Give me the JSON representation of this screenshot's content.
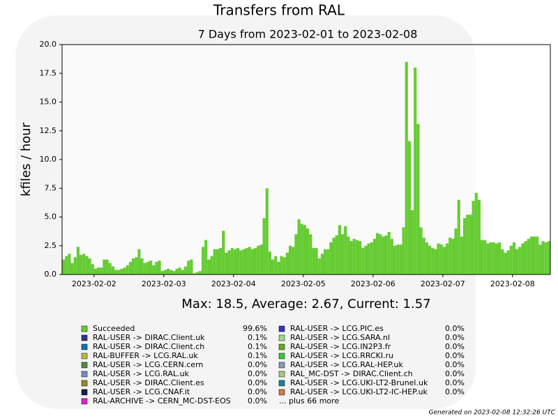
{
  "chart_data": {
    "type": "bar",
    "title": "Transfers from RAL",
    "subtitle": "7 Days from 2023-02-01 to 2023-02-08",
    "y_label": "kfiles / hour",
    "summary": "Max: 18.5, Average: 2.67, Current: 1.57",
    "footer": "Generated on 2023-02-08 12:32:26 UTC",
    "xlim": [
      0,
      168
    ],
    "xticks": [
      {
        "value": 11,
        "label": "2023-02-02"
      },
      {
        "value": 35,
        "label": "2023-02-03"
      },
      {
        "value": 59,
        "label": "2023-02-04"
      },
      {
        "value": 83,
        "label": "2023-02-05"
      },
      {
        "value": 107,
        "label": "2023-02-06"
      },
      {
        "value": 131,
        "label": "2023-02-07"
      },
      {
        "value": 155,
        "label": "2023-02-08"
      }
    ],
    "ylim": [
      0,
      20
    ],
    "yticks": [
      {
        "value": 0,
        "label": "0.0"
      },
      2.5,
      {
        "value": 5,
        "label": "5.0"
      },
      7.5,
      {
        "value": 10,
        "label": "10.0"
      },
      12.5,
      {
        "value": 15,
        "label": "15.0"
      },
      17.5,
      {
        "value": 20,
        "label": "20.0"
      }
    ],
    "series": [
      {
        "name": "Succeeded",
        "color": "#66cc33",
        "values": [
          1.3,
          1.6,
          1.8,
          1.0,
          1.5,
          2.4,
          1.7,
          1.8,
          1.6,
          1.4,
          0.9,
          0.5,
          0.6,
          0.6,
          1.3,
          1.3,
          1.0,
          0.7,
          0.4,
          0.4,
          0.5,
          0.6,
          0.8,
          1.1,
          1.4,
          1.5,
          2.2,
          1.4,
          1.0,
          1.1,
          1.2,
          0.8,
          1.1,
          1.2,
          0.3,
          0.4,
          0.5,
          0.4,
          0.3,
          0.5,
          0.6,
          0.4,
          0.7,
          1.2,
          1.3,
          0.1,
          0.2,
          0.3,
          2.4,
          3.0,
          1.3,
          1.6,
          2.2,
          2.2,
          2.3,
          3.8,
          1.9,
          2.1,
          2.3,
          2.2,
          2.3,
          2.1,
          2.2,
          2.3,
          2.4,
          2.2,
          2.3,
          2.5,
          2.6,
          4.9,
          7.5,
          2.0,
          1.3,
          1.6,
          1.1,
          1.6,
          1.5,
          1.9,
          2.5,
          2.4,
          3.5,
          4.8,
          4.4,
          4.3,
          4.0,
          3.5,
          2.3,
          2.3,
          1.4,
          1.8,
          2.2,
          2.2,
          2.8,
          3.2,
          3.4,
          4.3,
          3.5,
          4.2,
          3.3,
          2.9,
          3.1,
          3.0,
          2.9,
          2.3,
          2.5,
          2.7,
          2.8,
          3.1,
          3.6,
          3.5,
          3.3,
          3.4,
          3.7,
          3.1,
          2.5,
          2.6,
          2.6,
          4.1,
          18.5,
          11.6,
          5.6,
          18.0,
          13.1,
          4.1,
          3.2,
          2.8,
          2.5,
          2.3,
          2.2,
          2.7,
          2.6,
          2.4,
          2.7,
          3.2,
          3.1,
          4.0,
          6.5,
          3.3,
          4.9,
          5.2,
          5.2,
          6.4,
          7.1,
          6.5,
          3.0,
          3.0,
          2.7,
          2.8,
          2.8,
          2.7,
          2.8,
          2.2,
          1.9,
          2.1,
          2.5,
          2.8,
          2.2,
          2.4,
          2.7,
          2.9,
          3.1,
          3.3,
          3.3,
          3.3,
          2.6,
          2.9,
          2.8,
          2.9
        ]
      }
    ],
    "legend": [
      {
        "name": "Succeeded",
        "color": "#66cc33",
        "share": "99.6%"
      },
      {
        "name": "RAL-USER -> DIRAC.Client.uk",
        "color": "#333388",
        "share": "0.1%"
      },
      {
        "name": "RAL-USER -> DIRAC.Client.ch",
        "color": "#1177aa",
        "share": "0.1%"
      },
      {
        "name": "RAL-BUFFER -> LCG.RAL.uk",
        "color": "#bbbb44",
        "share": "0.1%"
      },
      {
        "name": "RAL-USER -> LCG.CERN.cern",
        "color": "#558844",
        "share": "0.0%"
      },
      {
        "name": "RAL-USER -> LCG.RAL.uk",
        "color": "#7788cc",
        "share": "0.0%"
      },
      {
        "name": "RAL-USER -> DIRAC.Client.es",
        "color": "#998822",
        "share": "0.0%"
      },
      {
        "name": "RAL-USER -> LCG.CNAF.it",
        "color": "#112244",
        "share": "0.0%"
      },
      {
        "name": "RAL-ARCHIVE -> CERN_MC-DST-EOS",
        "color": "#dd22dd",
        "share": "0.0%"
      },
      {
        "name": "RAL-USER -> LCG.PIC.es",
        "color": "#3333cc",
        "share": "0.0%"
      },
      {
        "name": "RAL-USER -> LCG.SARA.nl",
        "color": "#99dd88",
        "share": "0.0%"
      },
      {
        "name": "RAL-USER -> LCG.IN2P3.fr",
        "color": "#66aa22",
        "share": "0.0%"
      },
      {
        "name": "RAL-USER -> LCG.RRCKI.ru",
        "color": "#33cc33",
        "share": "0.0%"
      },
      {
        "name": "RAL-USER -> LCG.RAL-HEP.uk",
        "color": "#8899bb",
        "share": "0.0%"
      },
      {
        "name": "RAL_MC-DST -> DIRAC.Client.ch",
        "color": "#aacc77",
        "share": "0.0%"
      },
      {
        "name": "RAL-USER -> LCG.UKI-LT2-Brunel.uk",
        "color": "#118899",
        "share": "0.0%"
      },
      {
        "name": "RAL-USER -> LCG.UKI-LT2-IC-HEP.uk",
        "color": "#dd7744",
        "share": "0.0%"
      }
    ],
    "legend_more": "... plus 66 more"
  }
}
